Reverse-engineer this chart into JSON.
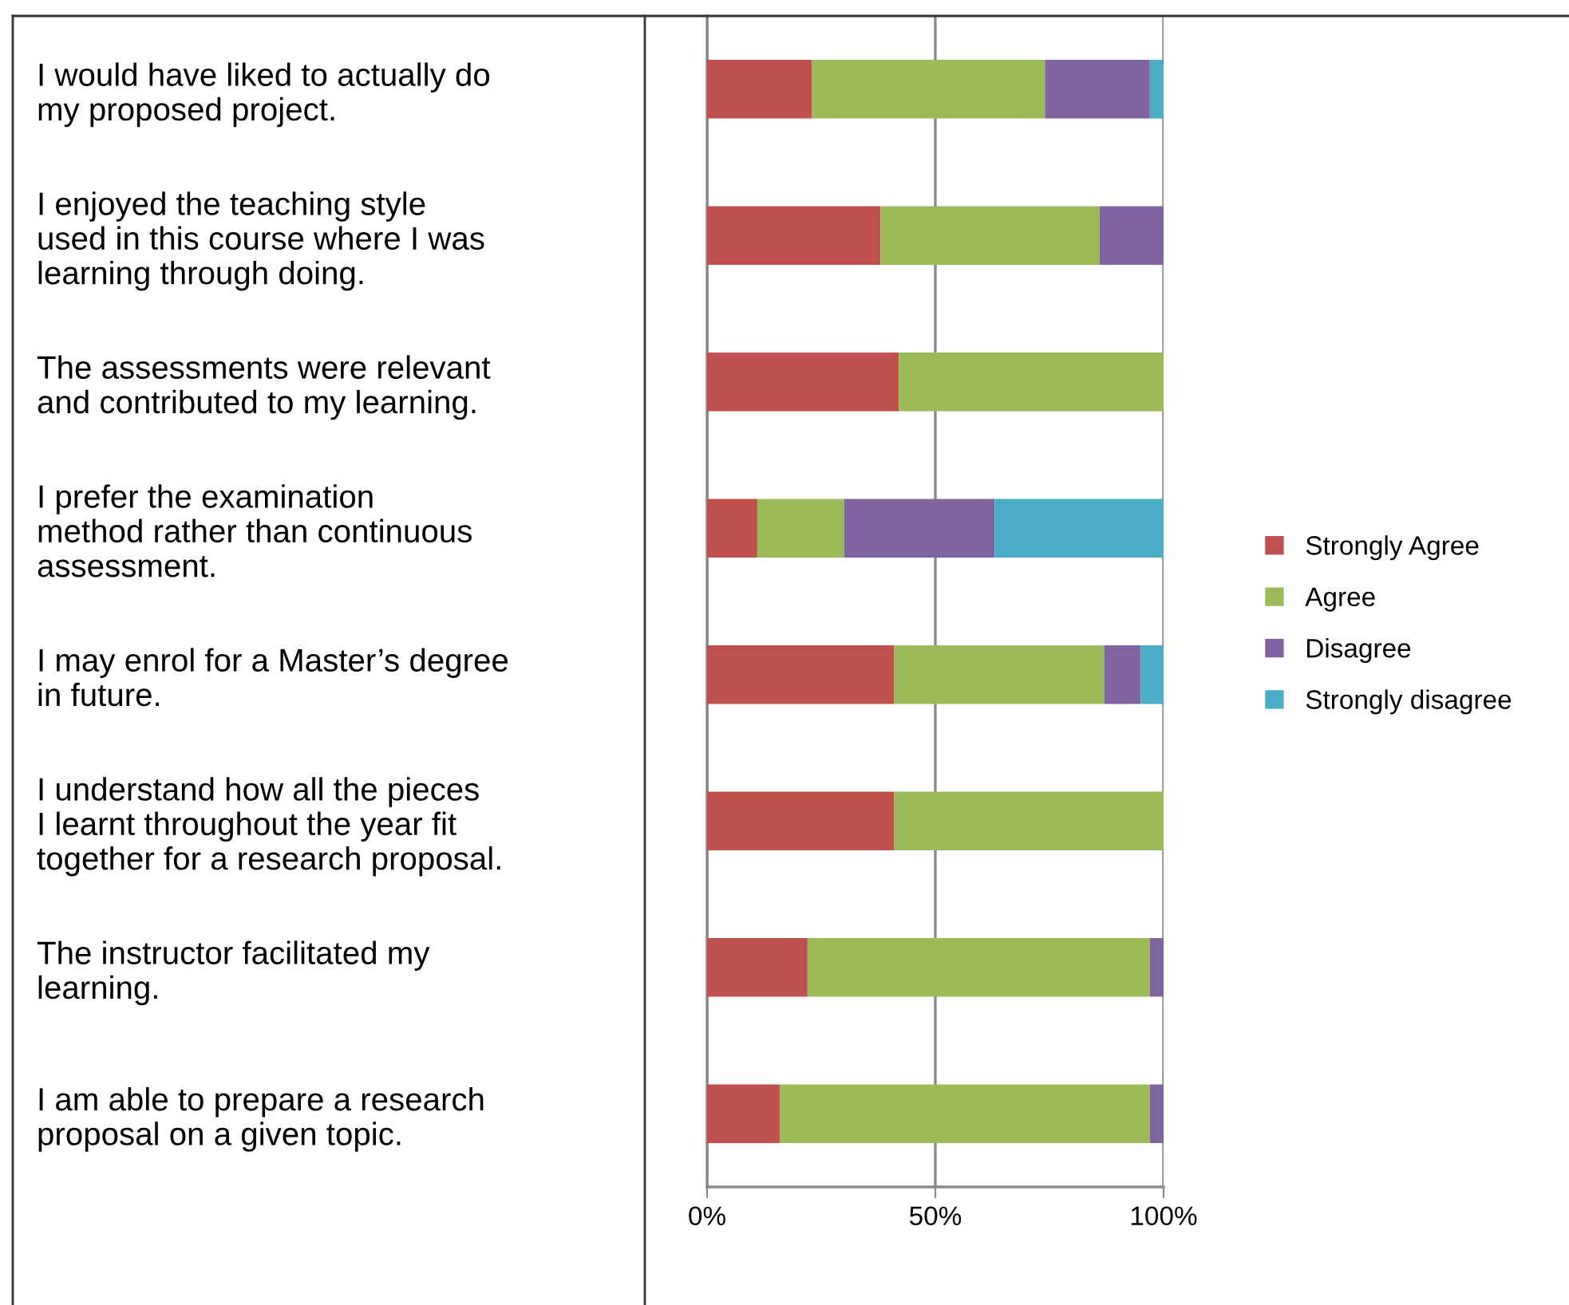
{
  "chart_data": {
    "type": "bar",
    "orientation": "horizontal",
    "stacked": true,
    "categories": [
      "I would have liked to actually do\nmy proposed project.",
      "I enjoyed the teaching style\nused in this course where I was\nlearning through doing.",
      "The assessments were relevant\nand contributed to my learning.",
      "I prefer the examination\nmethod rather than continuous\nassessment.",
      "I may enrol for a Master’s degree\nin future.",
      "I understand how all the pieces\nI learnt throughout the year fit\ntogether for a research proposal.",
      "The instructor facilitated my\nlearning.",
      "I am able to prepare a research\nproposal on a given topic."
    ],
    "series": [
      {
        "name": "Strongly Agree",
        "color": "#c0504d",
        "values": [
          23,
          38,
          42,
          11,
          41,
          41,
          22,
          16
        ]
      },
      {
        "name": "Agree",
        "color": "#9bbb59",
        "values": [
          51,
          48,
          58,
          19,
          46,
          59,
          75,
          81
        ]
      },
      {
        "name": "Disagree",
        "color": "#8064a2",
        "values": [
          23,
          14,
          0,
          33,
          8,
          0,
          3,
          3
        ]
      },
      {
        "name": "Strongly disagree",
        "color": "#4bacc6",
        "values": [
          3,
          0,
          0,
          37,
          5,
          0,
          0,
          0
        ]
      }
    ],
    "xlim": [
      0,
      100
    ],
    "xticks": [
      {
        "value": 0,
        "label": "0%"
      },
      {
        "value": 50,
        "label": "50%"
      },
      {
        "value": 100,
        "label": "100%"
      }
    ],
    "grid": "x",
    "legend": "right"
  }
}
